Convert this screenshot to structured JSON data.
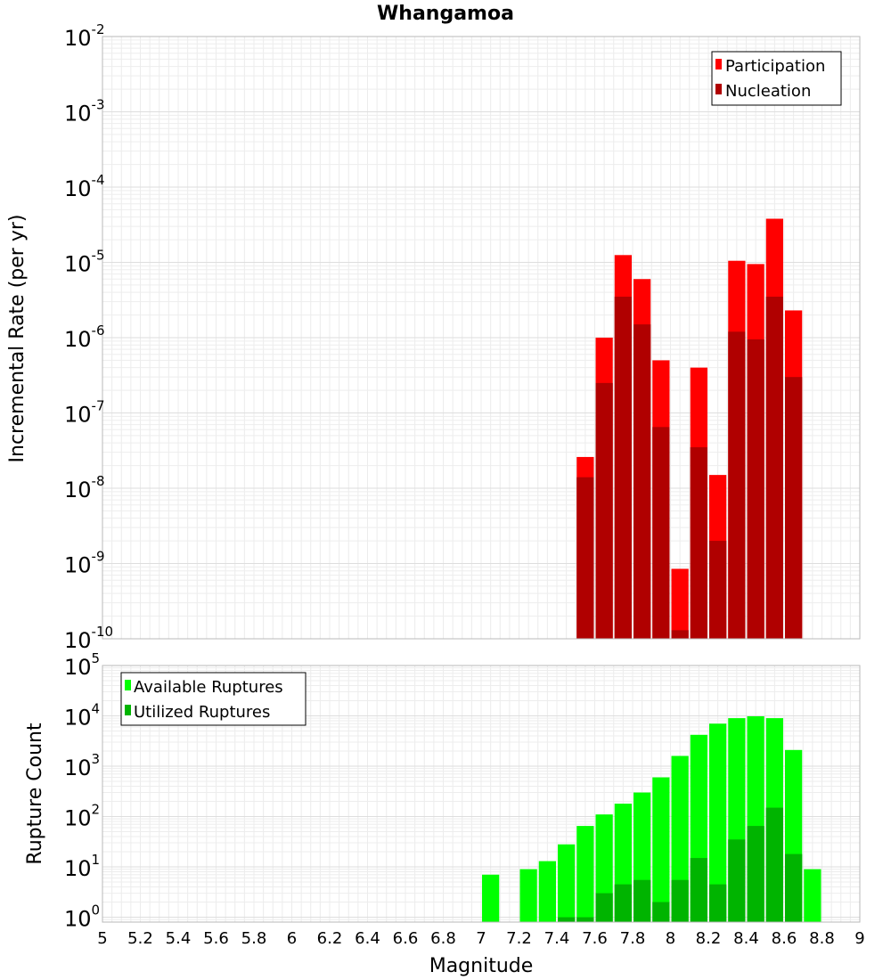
{
  "chart_data": [
    {
      "type": "bar",
      "title": "Whangamoa",
      "ylabel": "Incremental Rate (per yr)",
      "xlabel": "",
      "yscale": "log",
      "ylim": [
        1e-10,
        0.01
      ],
      "xlim": [
        5,
        9
      ],
      "grid": true,
      "legend_position": "top-right",
      "legend": [
        "Participation",
        "Nucleation"
      ],
      "x": [
        7.55,
        7.65,
        7.75,
        7.85,
        7.95,
        8.05,
        8.15,
        8.25,
        8.35,
        8.45,
        8.55,
        8.65
      ],
      "series": [
        {
          "name": "Participation",
          "color": "#ff0000",
          "values": [
            2.6e-08,
            1e-06,
            1.25e-05,
            6e-06,
            5e-07,
            8.5e-10,
            4e-07,
            1.5e-08,
            1.05e-05,
            9.5e-06,
            3.8e-05,
            2.3e-06
          ]
        },
        {
          "name": "Nucleation",
          "color": "#b00000",
          "values": [
            1.4e-08,
            2.5e-07,
            3.5e-06,
            1.5e-06,
            6.5e-08,
            1.3e-10,
            3.5e-08,
            2e-09,
            1.2e-06,
            9.5e-07,
            3.5e-06,
            3e-07
          ]
        }
      ]
    },
    {
      "type": "bar",
      "title": "",
      "ylabel": "Rupture Count",
      "xlabel": "Magnitude",
      "yscale": "log",
      "ylim": [
        0.8,
        100000
      ],
      "xlim": [
        5,
        9
      ],
      "grid": true,
      "legend_position": "top-left",
      "legend": [
        "Available Ruptures",
        "Utilized Ruptures"
      ],
      "x": [
        7.05,
        7.25,
        7.35,
        7.45,
        7.55,
        7.65,
        7.75,
        7.85,
        7.95,
        8.05,
        8.15,
        8.25,
        8.35,
        8.45,
        8.55,
        8.65,
        8.75
      ],
      "series": [
        {
          "name": "Available Ruptures",
          "color": "#00ff00",
          "values": [
            7,
            9,
            13,
            28,
            65,
            110,
            180,
            300,
            600,
            1600,
            4200,
            7000,
            9000,
            9800,
            9000,
            2100,
            9
          ]
        },
        {
          "name": "Utilized Ruptures",
          "color": "#00b400",
          "values": [
            null,
            null,
            null,
            1,
            1,
            3,
            4.5,
            5.5,
            2,
            5.5,
            15,
            4.5,
            35,
            65,
            150,
            18,
            null
          ]
        }
      ]
    }
  ],
  "x_ticks": [
    "5",
    "5.2",
    "5.4",
    "5.6",
    "5.8",
    "6",
    "6.2",
    "6.4",
    "6.6",
    "6.8",
    "7",
    "7.2",
    "7.4",
    "7.6",
    "7.8",
    "8",
    "8.2",
    "8.4",
    "8.6",
    "8.8",
    "9"
  ],
  "y_ticks_top": [
    {
      "base": "10",
      "exp": "-2"
    },
    {
      "base": "10",
      "exp": "-3"
    },
    {
      "base": "10",
      "exp": "-4"
    },
    {
      "base": "10",
      "exp": "-5"
    },
    {
      "base": "10",
      "exp": "-6"
    },
    {
      "base": "10",
      "exp": "-7"
    },
    {
      "base": "10",
      "exp": "-8"
    },
    {
      "base": "10",
      "exp": "-9"
    },
    {
      "base": "10",
      "exp": "-10"
    }
  ],
  "y_ticks_bottom": [
    {
      "base": "10",
      "exp": "5"
    },
    {
      "base": "10",
      "exp": "4"
    },
    {
      "base": "10",
      "exp": "3"
    },
    {
      "base": "10",
      "exp": "2"
    },
    {
      "base": "10",
      "exp": "1"
    },
    {
      "base": "10",
      "exp": "0"
    }
  ]
}
